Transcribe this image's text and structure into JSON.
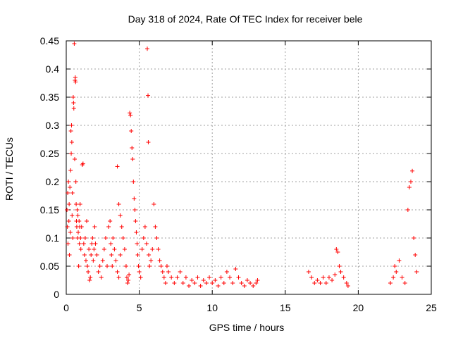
{
  "chart_data": {
    "type": "scatter",
    "title": "Day 318 of 2024, Rate Of TEC Index for receiver bele",
    "xlabel": "GPS time / hours",
    "ylabel": "ROTI / TECUs",
    "xlim": [
      0,
      25
    ],
    "ylim": [
      0,
      0.45
    ],
    "xticks": [
      0,
      5,
      10,
      15,
      20,
      25
    ],
    "yticks": [
      0,
      0.05,
      0.1,
      0.15,
      0.2,
      0.25,
      0.3,
      0.35,
      0.4,
      0.45
    ],
    "xtick_labels": [
      "0",
      "5",
      "10",
      "15",
      "20",
      "25"
    ],
    "ytick_labels": [
      "0",
      "0.05",
      "0.1",
      "0.15",
      "0.2",
      "0.25",
      "0.3",
      "0.35",
      "0.4",
      "0.45"
    ],
    "grid": true,
    "marker": "+",
    "color": "#ff0000",
    "series": [
      {
        "name": "ROTI",
        "points": [
          [
            0.05,
            0.15
          ],
          [
            0.08,
            0.12
          ],
          [
            0.1,
            0.18
          ],
          [
            0.12,
            0.09
          ],
          [
            0.15,
            0.2
          ],
          [
            0.18,
            0.13
          ],
          [
            0.2,
            0.16
          ],
          [
            0.22,
            0.07
          ],
          [
            0.25,
            0.19
          ],
          [
            0.28,
            0.11
          ],
          [
            0.3,
            0.22
          ],
          [
            0.32,
            0.29
          ],
          [
            0.34,
            0.25
          ],
          [
            0.36,
            0.3
          ],
          [
            0.38,
            0.27
          ],
          [
            0.4,
            0.14
          ],
          [
            0.42,
            0.18
          ],
          [
            0.45,
            0.1
          ],
          [
            0.48,
            0.35
          ],
          [
            0.5,
            0.34
          ],
          [
            0.52,
            0.33
          ],
          [
            0.55,
            0.445
          ],
          [
            0.58,
            0.24
          ],
          [
            0.6,
            0.38
          ],
          [
            0.62,
            0.385
          ],
          [
            0.64,
            0.377
          ],
          [
            0.66,
            0.2
          ],
          [
            0.68,
            0.16
          ],
          [
            0.7,
            0.13
          ],
          [
            0.72,
            0.12
          ],
          [
            0.75,
            0.15
          ],
          [
            0.78,
            0.1
          ],
          [
            0.8,
            0.14
          ],
          [
            0.82,
            0.11
          ],
          [
            0.85,
            0.05
          ],
          [
            0.88,
            0.13
          ],
          [
            0.9,
            0.09
          ],
          [
            0.92,
            0.12
          ],
          [
            0.95,
            0.16
          ],
          [
            0.98,
            0.1
          ],
          [
            1.0,
            0.08
          ],
          [
            1.05,
            0.12
          ],
          [
            1.1,
            0.23
          ],
          [
            1.15,
            0.232
          ],
          [
            1.2,
            0.09
          ],
          [
            1.25,
            0.07
          ],
          [
            1.3,
            0.1
          ],
          [
            1.35,
            0.06
          ],
          [
            1.4,
            0.13
          ],
          [
            1.45,
            0.05
          ],
          [
            1.5,
            0.04
          ],
          [
            1.55,
            0.08
          ],
          [
            1.6,
            0.025
          ],
          [
            1.65,
            0.03
          ],
          [
            1.7,
            0.07
          ],
          [
            1.75,
            0.09
          ],
          [
            1.8,
            0.1
          ],
          [
            1.85,
            0.06
          ],
          [
            1.9,
            0.08
          ],
          [
            1.95,
            0.12
          ],
          [
            2.0,
            0.09
          ],
          [
            2.1,
            0.07
          ],
          [
            2.2,
            0.04
          ],
          [
            2.3,
            0.05
          ],
          [
            2.4,
            0.03
          ],
          [
            2.5,
            0.06
          ],
          [
            2.6,
            0.08
          ],
          [
            2.7,
            0.1
          ],
          [
            2.8,
            0.05
          ],
          [
            2.9,
            0.12
          ],
          [
            3.0,
            0.13
          ],
          [
            3.05,
            0.09
          ],
          [
            3.1,
            0.07
          ],
          [
            3.15,
            0.05
          ],
          [
            3.2,
            0.1
          ],
          [
            3.3,
            0.08
          ],
          [
            3.4,
            0.06
          ],
          [
            3.5,
            0.04
          ],
          [
            3.6,
            0.03
          ],
          [
            3.7,
            0.07
          ],
          [
            3.5,
            0.227
          ],
          [
            3.6,
            0.16
          ],
          [
            3.7,
            0.14
          ],
          [
            3.8,
            0.12
          ],
          [
            3.9,
            0.1
          ],
          [
            4.0,
            0.08
          ],
          [
            4.1,
            0.05
          ],
          [
            4.15,
            0.03
          ],
          [
            4.2,
            0.02
          ],
          [
            4.25,
            0.025
          ],
          [
            4.3,
            0.035
          ],
          [
            4.35,
            0.322
          ],
          [
            4.4,
            0.318
          ],
          [
            4.45,
            0.29
          ],
          [
            4.5,
            0.26
          ],
          [
            4.55,
            0.24
          ],
          [
            4.6,
            0.2
          ],
          [
            4.65,
            0.17
          ],
          [
            4.7,
            0.15
          ],
          [
            4.75,
            0.13
          ],
          [
            4.8,
            0.11
          ],
          [
            4.85,
            0.09
          ],
          [
            4.9,
            0.07
          ],
          [
            4.95,
            0.05
          ],
          [
            5.0,
            0.04
          ],
          [
            5.1,
            0.03
          ],
          [
            5.2,
            0.08
          ],
          [
            5.3,
            0.1
          ],
          [
            5.4,
            0.12
          ],
          [
            5.5,
            0.09
          ],
          [
            5.55,
            0.436
          ],
          [
            5.6,
            0.353
          ],
          [
            5.62,
            0.27
          ],
          [
            5.65,
            0.07
          ],
          [
            5.7,
            0.05
          ],
          [
            5.8,
            0.06
          ],
          [
            5.9,
            0.08
          ],
          [
            6.0,
            0.16
          ],
          [
            6.1,
            0.12
          ],
          [
            6.2,
            0.1
          ],
          [
            6.3,
            0.08
          ],
          [
            6.4,
            0.06
          ],
          [
            6.5,
            0.05
          ],
          [
            6.6,
            0.04
          ],
          [
            6.7,
            0.03
          ],
          [
            6.8,
            0.02
          ],
          [
            6.9,
            0.05
          ],
          [
            7.0,
            0.04
          ],
          [
            7.2,
            0.03
          ],
          [
            7.4,
            0.02
          ],
          [
            7.6,
            0.03
          ],
          [
            7.8,
            0.04
          ],
          [
            8.0,
            0.02
          ],
          [
            8.2,
            0.03
          ],
          [
            8.4,
            0.015
          ],
          [
            8.6,
            0.025
          ],
          [
            8.8,
            0.02
          ],
          [
            9.0,
            0.03
          ],
          [
            9.2,
            0.015
          ],
          [
            9.4,
            0.025
          ],
          [
            9.6,
            0.02
          ],
          [
            9.8,
            0.03
          ],
          [
            10.0,
            0.02
          ],
          [
            10.2,
            0.025
          ],
          [
            10.4,
            0.015
          ],
          [
            10.6,
            0.03
          ],
          [
            10.8,
            0.02
          ],
          [
            11.0,
            0.04
          ],
          [
            11.2,
            0.03
          ],
          [
            11.4,
            0.02
          ],
          [
            11.6,
            0.045
          ],
          [
            11.8,
            0.03
          ],
          [
            12.0,
            0.02
          ],
          [
            12.2,
            0.015
          ],
          [
            12.4,
            0.025
          ],
          [
            12.6,
            0.02
          ],
          [
            12.8,
            0.015
          ],
          [
            13.0,
            0.02
          ],
          [
            13.1,
            0.025
          ],
          [
            16.6,
            0.04
          ],
          [
            16.8,
            0.03
          ],
          [
            17.0,
            0.02
          ],
          [
            17.2,
            0.025
          ],
          [
            17.4,
            0.02
          ],
          [
            17.6,
            0.03
          ],
          [
            17.8,
            0.02
          ],
          [
            18.0,
            0.03
          ],
          [
            18.2,
            0.025
          ],
          [
            18.4,
            0.035
          ],
          [
            18.5,
            0.08
          ],
          [
            18.6,
            0.075
          ],
          [
            18.7,
            0.05
          ],
          [
            18.8,
            0.04
          ],
          [
            19.0,
            0.03
          ],
          [
            19.2,
            0.02
          ],
          [
            19.3,
            0.015
          ],
          [
            22.2,
            0.02
          ],
          [
            22.4,
            0.03
          ],
          [
            22.5,
            0.05
          ],
          [
            22.6,
            0.04
          ],
          [
            22.8,
            0.06
          ],
          [
            23.0,
            0.03
          ],
          [
            23.2,
            0.02
          ],
          [
            23.4,
            0.15
          ],
          [
            23.5,
            0.19
          ],
          [
            23.6,
            0.2
          ],
          [
            23.7,
            0.219
          ],
          [
            23.8,
            0.1
          ],
          [
            23.9,
            0.07
          ],
          [
            24.0,
            0.04
          ]
        ]
      }
    ]
  }
}
